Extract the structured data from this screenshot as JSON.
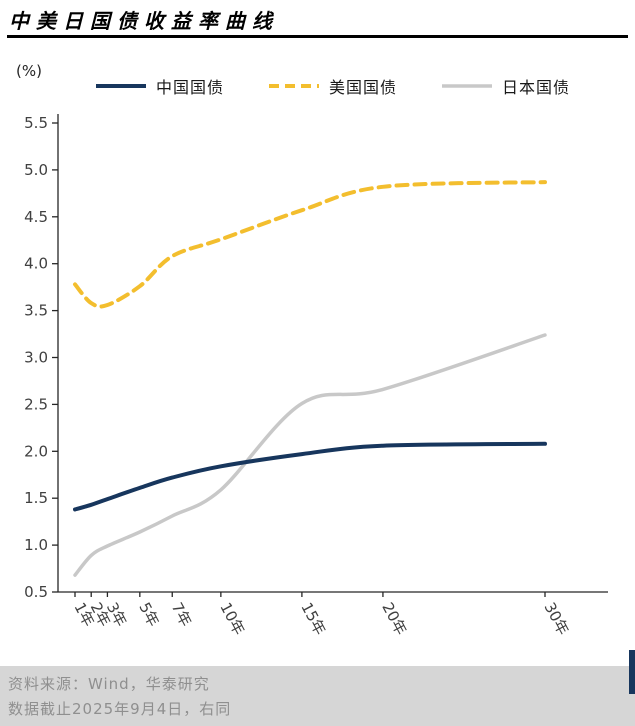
{
  "header": {
    "title": "中美日国债收益率曲线"
  },
  "chart_data": {
    "type": "line",
    "title": "中美日国债收益率曲线",
    "xlabel": "",
    "ylabel": "(%)",
    "x_years": [
      1,
      2,
      3,
      5,
      7,
      10,
      15,
      20,
      30
    ],
    "x_tick_labels": [
      "1年",
      "2年",
      "3年",
      "5年",
      "7年",
      "10年",
      "15年",
      "20年",
      "30年"
    ],
    "ylim": [
      0.5,
      5.5
    ],
    "y_tick_step": 0.5,
    "grid": false,
    "legend_position": "top",
    "axis_color": "#262626",
    "series": [
      {
        "name": "中国国债",
        "color": "#17365D",
        "dash": "solid",
        "width": 4,
        "values": [
          1.38,
          1.43,
          1.49,
          1.61,
          1.72,
          1.84,
          1.97,
          2.06,
          2.08
        ]
      },
      {
        "name": "美国国债",
        "color": "#F3BE2E",
        "dash": "dashed",
        "width": 4,
        "values": [
          3.78,
          3.58,
          3.56,
          3.76,
          4.08,
          4.26,
          4.57,
          4.82,
          4.87
        ]
      },
      {
        "name": "日本国债",
        "color": "#C8C8C8",
        "dash": "solid",
        "width": 3.5,
        "values": [
          0.68,
          0.89,
          0.99,
          1.14,
          1.31,
          1.59,
          2.51,
          2.66,
          3.24
        ]
      }
    ]
  },
  "footer": {
    "source": "资料来源：Wind，华泰研究",
    "note": "数据截止2025年9月4日，右同"
  }
}
